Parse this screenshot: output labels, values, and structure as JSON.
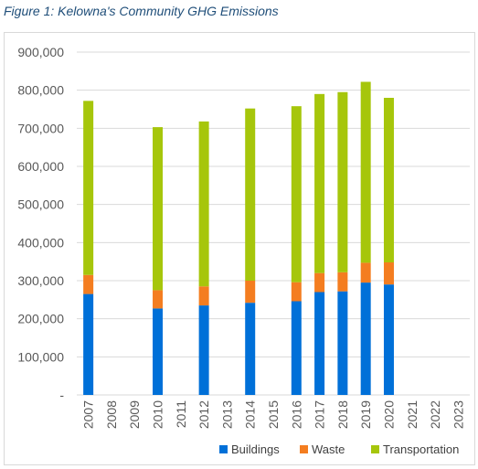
{
  "caption": "Figure 1: Kelowna's Community GHG Emissions",
  "chart_data": {
    "type": "bar",
    "stacked": true,
    "categories": [
      "2007",
      "2008",
      "2009",
      "2010",
      "2011",
      "2012",
      "2013",
      "2014",
      "2015",
      "2016",
      "2017",
      "2018",
      "2019",
      "2020",
      "2021",
      "2022",
      "2023"
    ],
    "series": [
      {
        "name": "Buildings",
        "color": "#0070d8",
        "values": [
          265000,
          null,
          null,
          227000,
          null,
          235000,
          null,
          242000,
          null,
          246000,
          270000,
          272000,
          295000,
          290000,
          null,
          null,
          null
        ]
      },
      {
        "name": "Waste",
        "color": "#f47d20",
        "values": [
          50000,
          null,
          null,
          48000,
          null,
          50000,
          null,
          58000,
          null,
          50000,
          50000,
          50000,
          52000,
          58000,
          null,
          null,
          null
        ]
      },
      {
        "name": "Transportation",
        "color": "#a6c60b",
        "values": [
          457000,
          null,
          null,
          428000,
          null,
          433000,
          null,
          452000,
          null,
          462000,
          470000,
          473000,
          475000,
          432000,
          null,
          null,
          null
        ]
      }
    ],
    "ylim": [
      0,
      900000
    ],
    "yticks": [
      0,
      100000,
      200000,
      300000,
      400000,
      500000,
      600000,
      700000,
      800000,
      900000
    ],
    "ytick_labels": [
      "-",
      "100,000",
      "200,000",
      "300,000",
      "400,000",
      "500,000",
      "600,000",
      "700,000",
      "800,000",
      "900,000"
    ],
    "grid": true,
    "legend_position": "bottom"
  }
}
